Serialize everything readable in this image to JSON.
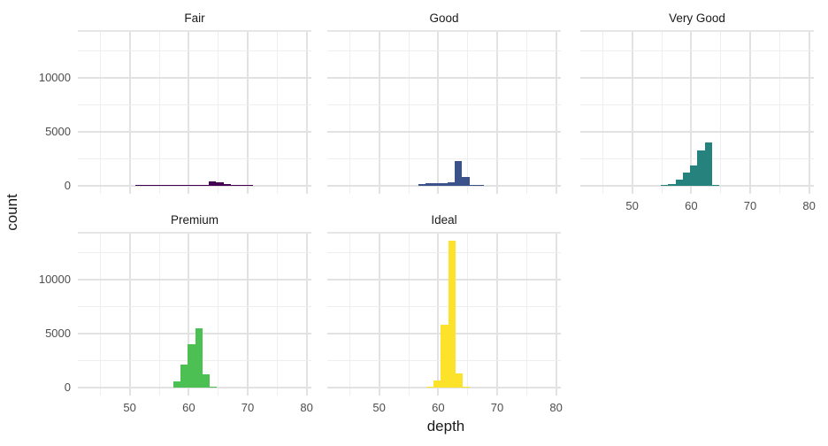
{
  "figure": {
    "background": "#ffffff",
    "x_title": "depth",
    "y_title": "count"
  },
  "theme": {
    "grid_major_color": "#e2e2e2",
    "grid_minor_color": "#eeeeee",
    "panel_edge_color": "#e6e6e6",
    "tick_label_color": "#4d4d4d",
    "title_color": "#1a1a1a"
  },
  "chart_data": {
    "type": "bar",
    "subtype": "faceted-histogram",
    "title": "",
    "xlabel": "depth",
    "ylabel": "count",
    "grid": "on",
    "binwidth": 1.24,
    "x_domain": [
      41.2,
      80.8
    ],
    "y_domain": [
      -700,
      14400
    ],
    "x_breaks_major": [
      50,
      60,
      70,
      80
    ],
    "x_breaks_minor": [
      45,
      55,
      65,
      75
    ],
    "y_breaks_major": [
      0,
      5000,
      10000
    ],
    "y_breaks_minor": [
      2500,
      7500,
      12500
    ],
    "x_tick_labels": [
      "50",
      "60",
      "70",
      "80"
    ],
    "y_tick_labels": [
      "0",
      "5000",
      "10000"
    ],
    "facets": [
      {
        "label": "Fair",
        "row": 0,
        "col": 0,
        "color": "#440154",
        "show_x_labels": false,
        "show_y_labels": true,
        "bars": [
          [
            51.0,
            30
          ],
          [
            52.24,
            20
          ],
          [
            53.48,
            40
          ],
          [
            54.72,
            90
          ],
          [
            55.96,
            100
          ],
          [
            57.2,
            90
          ],
          [
            58.44,
            90
          ],
          [
            59.68,
            80
          ],
          [
            60.92,
            60
          ],
          [
            62.16,
            70
          ],
          [
            63.4,
            420
          ],
          [
            64.64,
            330
          ],
          [
            65.88,
            160
          ],
          [
            67.12,
            70
          ],
          [
            68.36,
            40
          ],
          [
            69.6,
            20
          ]
        ]
      },
      {
        "label": "Good",
        "row": 0,
        "col": 1,
        "color": "#3B528B",
        "show_x_labels": false,
        "show_y_labels": false,
        "bars": [
          [
            56.6,
            190
          ],
          [
            57.84,
            310
          ],
          [
            59.08,
            280
          ],
          [
            60.32,
            270
          ],
          [
            61.56,
            330
          ],
          [
            62.8,
            2290
          ],
          [
            64.04,
            820
          ],
          [
            65.28,
            130
          ],
          [
            66.52,
            40
          ]
        ]
      },
      {
        "label": "Very Good",
        "row": 0,
        "col": 2,
        "color": "#26827D",
        "show_x_labels": true,
        "show_y_labels": false,
        "bars": [
          [
            54.86,
            140
          ],
          [
            56.1,
            190
          ],
          [
            57.34,
            630
          ],
          [
            58.58,
            1230
          ],
          [
            59.82,
            1950
          ],
          [
            61.06,
            3300
          ],
          [
            62.3,
            4000
          ],
          [
            63.54,
            150
          ]
        ]
      },
      {
        "label": "Premium",
        "row": 1,
        "col": 0,
        "color": "#4DC053",
        "show_x_labels": true,
        "show_y_labels": true,
        "bars": [
          [
            57.36,
            630
          ],
          [
            58.6,
            2130
          ],
          [
            59.84,
            4000
          ],
          [
            61.08,
            5530
          ],
          [
            62.32,
            1250
          ],
          [
            63.56,
            60
          ]
        ]
      },
      {
        "label": "Ideal",
        "row": 1,
        "col": 1,
        "color": "#FCE32A",
        "show_x_labels": true,
        "show_y_labels": false,
        "bars": [
          [
            57.96,
            80
          ],
          [
            59.2,
            680
          ],
          [
            60.44,
            5850
          ],
          [
            61.68,
            13600
          ],
          [
            62.92,
            1320
          ],
          [
            64.16,
            60
          ]
        ]
      }
    ]
  }
}
